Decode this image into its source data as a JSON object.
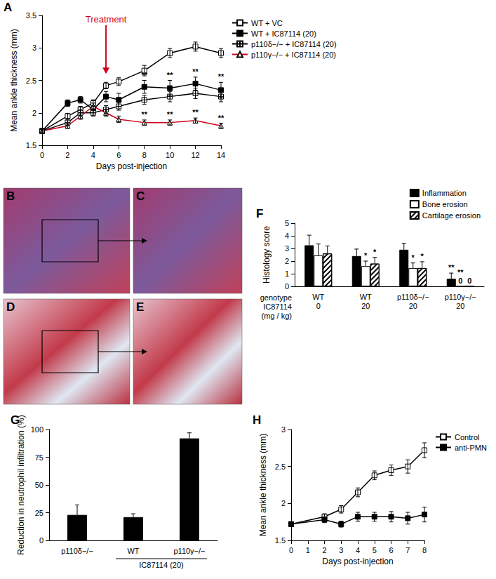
{
  "chart_data": [
    {
      "type": "line",
      "title": "A",
      "x_label": "Days post-injection",
      "y_label": "Mean ankle thickness (mm)",
      "xlim": [
        0,
        14
      ],
      "xticks": [
        0,
        2,
        4,
        6,
        8,
        10,
        12,
        14
      ],
      "ylim": [
        1.5,
        3.5
      ],
      "yticks": [
        1.5,
        2,
        2.5,
        3,
        3.5
      ],
      "legend": "right",
      "treatment": {
        "x": 5,
        "y": 2.6,
        "text": "Treatment",
        "color": "#d0021b"
      },
      "x": [
        0,
        2,
        3,
        4,
        5,
        6,
        8,
        10,
        12,
        14
      ],
      "series": [
        {
          "name": "WT + VC",
          "color": "#000000",
          "marker": "square_open",
          "values": [
            1.72,
            1.95,
            2.05,
            2.15,
            2.42,
            2.48,
            2.65,
            2.92,
            3.02,
            2.92
          ],
          "errors": [
            0.03,
            0.04,
            0.05,
            0.05,
            0.05,
            0.06,
            0.08,
            0.07,
            0.07,
            0.07
          ]
        },
        {
          "name": "WT + IC87114 (20)",
          "color": "#000000",
          "marker": "square_filled",
          "values": [
            1.72,
            2.15,
            2.2,
            2.05,
            2.25,
            2.2,
            2.4,
            2.38,
            2.45,
            2.35
          ],
          "errors": [
            0.03,
            0.05,
            0.05,
            0.05,
            0.08,
            0.1,
            0.1,
            0.12,
            0.1,
            0.12
          ],
          "annotations": [
            null,
            null,
            null,
            null,
            null,
            null,
            "**",
            "**",
            "**",
            "**"
          ]
        },
        {
          "name": "p110δ−/− + IC87114 (20)",
          "color": "#000000",
          "marker": "square_crossed",
          "values": [
            1.72,
            1.85,
            2.0,
            2.0,
            2.05,
            2.1,
            2.2,
            2.25,
            2.3,
            2.25
          ],
          "errors": [
            0.03,
            0.05,
            0.05,
            0.05,
            0.06,
            0.06,
            0.07,
            0.08,
            0.08,
            0.08
          ]
        },
        {
          "name": "p110γ−/− + IC87114 (20)",
          "color": "#d0021b",
          "marker": "triangle_open",
          "values": [
            1.72,
            1.8,
            1.95,
            2.1,
            2.0,
            1.9,
            1.85,
            1.85,
            1.88,
            1.8
          ],
          "errors": [
            0.03,
            0.04,
            0.05,
            0.05,
            0.05,
            0.05,
            0.04,
            0.04,
            0.04,
            0.04
          ],
          "annotations": [
            null,
            null,
            null,
            null,
            null,
            null,
            "**",
            "**",
            "**",
            "**"
          ]
        }
      ]
    },
    {
      "type": "bar",
      "title": "F",
      "y_label": "Histology score",
      "ylim": [
        0,
        5
      ],
      "yticks": [
        0,
        1,
        2,
        3,
        4,
        5
      ],
      "categories": [
        "WT\n0",
        "WT\n20",
        "p110δ−/−\n20",
        "p110γ−/−\n20"
      ],
      "row_labels": [
        "genotype",
        "IC87114\n(mg / kg)"
      ],
      "legend": "top-right",
      "series": [
        {
          "name": "Inflammation",
          "color": "#000000",
          "values": [
            3.25,
            2.4,
            2.9,
            0.6
          ],
          "errors": [
            0.8,
            0.55,
            0.5,
            0.45
          ],
          "annotations": [
            null,
            null,
            null,
            "**"
          ]
        },
        {
          "name": "Bone erosion",
          "color": "#ffffff",
          "values": [
            2.45,
            1.6,
            1.45,
            0
          ],
          "errors": [
            0.9,
            0.4,
            0.4,
            0
          ],
          "annotations": [
            null,
            "*",
            "*",
            "**\n0"
          ]
        },
        {
          "name": "Cartilage erosion",
          "color": "#ffffff",
          "marker": "hatched",
          "values": [
            2.6,
            1.8,
            1.45,
            0
          ],
          "errors": [
            0.6,
            0.5,
            0.5,
            0
          ],
          "annotations": [
            null,
            "*",
            "*",
            "0"
          ]
        }
      ]
    },
    {
      "type": "bar",
      "title": "G",
      "y_label": "Reduction in neutrophil infiltration (%)",
      "ylim": [
        0,
        100
      ],
      "yticks": [
        0,
        25,
        50,
        75,
        100
      ],
      "categories": [
        "p110δ−/−",
        "WT",
        "p110γ−/−"
      ],
      "group_label": {
        "text": "IC87114 (20)",
        "from": "WT",
        "to": "p110γ−/−"
      },
      "series": [
        {
          "color": "#000000",
          "values": [
            23,
            21,
            92
          ],
          "errors": [
            9,
            3,
            5
          ]
        }
      ]
    },
    {
      "type": "line",
      "title": "H",
      "x_label": "Days post-injection",
      "y_label": "Mean ankle thickness (mm)",
      "xlim": [
        0,
        8
      ],
      "xticks": [
        0,
        1,
        2,
        3,
        4,
        5,
        6,
        7,
        8
      ],
      "ylim": [
        1.5,
        3
      ],
      "yticks": [
        1.5,
        2,
        2.5,
        3
      ],
      "legend": "right",
      "x": [
        0,
        2,
        3,
        4,
        5,
        6,
        7,
        8
      ],
      "series": [
        {
          "name": "Control",
          "color": "#000000",
          "marker": "square_open",
          "values": [
            1.72,
            1.82,
            1.92,
            2.15,
            2.38,
            2.45,
            2.5,
            2.72
          ],
          "errors": [
            0.03,
            0.04,
            0.05,
            0.06,
            0.06,
            0.07,
            0.09,
            0.1
          ]
        },
        {
          "name": "anti-PMN",
          "color": "#000000",
          "marker": "square_filled",
          "values": [
            1.72,
            1.78,
            1.72,
            1.82,
            1.82,
            1.82,
            1.8,
            1.85
          ],
          "errors": [
            0.03,
            0.04,
            0.04,
            0.06,
            0.06,
            0.07,
            0.08,
            0.1
          ]
        }
      ]
    }
  ],
  "images": [
    {
      "label": "B"
    },
    {
      "label": "C"
    },
    {
      "label": "D"
    },
    {
      "label": "E"
    }
  ]
}
